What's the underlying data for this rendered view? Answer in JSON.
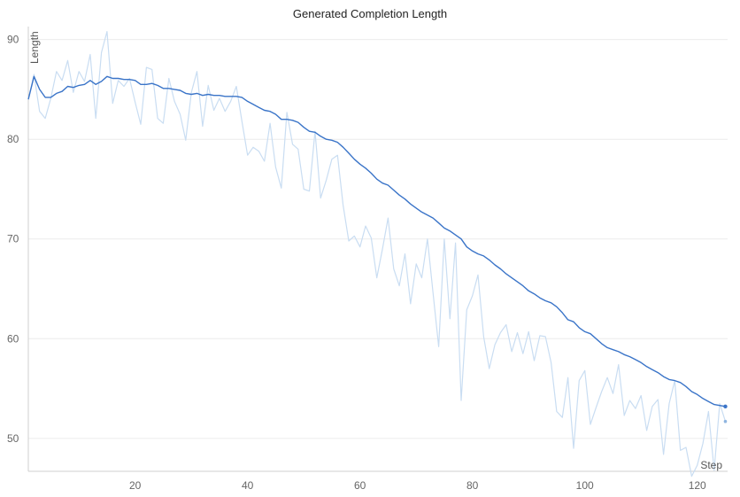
{
  "chart_data": {
    "type": "line",
    "title": "Generated Completion Length",
    "xlabel": "Step",
    "ylabel": "Length",
    "xlim": [
      1,
      125
    ],
    "ylim": [
      46,
      91
    ],
    "x_ticks": [
      20,
      40,
      60,
      80,
      100,
      120
    ],
    "y_ticks": [
      50,
      60,
      70,
      80,
      90
    ],
    "grid": "horizontal",
    "colors": {
      "raw": "#c9ddf2",
      "smoothed": "#3a74c8"
    },
    "series": [
      {
        "role": "raw",
        "values": [
          84.0,
          86.5,
          82.8,
          82.1,
          84.1,
          86.8,
          85.9,
          87.9,
          84.7,
          86.8,
          85.8,
          88.5,
          82.1,
          88.7,
          90.8,
          83.6,
          85.9,
          85.3,
          86.1,
          83.7,
          81.5,
          87.2,
          87.0,
          82.1,
          81.6,
          86.1,
          83.8,
          82.5,
          79.9,
          84.7,
          86.8,
          81.3,
          85.4,
          82.9,
          84.1,
          82.8,
          83.8,
          85.3,
          81.8,
          78.4,
          79.2,
          78.8,
          77.8,
          81.6,
          77.2,
          75.1,
          82.7,
          79.5,
          79.0,
          75.0,
          74.8,
          80.8,
          74.1,
          75.9,
          78.0,
          78.4,
          73.4,
          69.8,
          70.3,
          69.2,
          71.3,
          70.1,
          66.1,
          69.0,
          72.1,
          67.0,
          65.3,
          68.5,
          63.5,
          67.5,
          66.1,
          70.0,
          64.6,
          59.2,
          70.0,
          62.0,
          69.6,
          53.8,
          62.9,
          64.3,
          66.4,
          60.2,
          57.0,
          59.4,
          60.6,
          61.4,
          58.7,
          60.6,
          58.5,
          60.7,
          57.8,
          60.3,
          60.2,
          57.6,
          52.7,
          52.1,
          56.1,
          49.0,
          55.8,
          56.8,
          51.4,
          53.1,
          54.7,
          56.1,
          54.5,
          57.4,
          52.3,
          53.8,
          53.0,
          54.3,
          50.8,
          53.2,
          53.9,
          48.4,
          53.5,
          55.8,
          48.8,
          49.1,
          46.2,
          47.3,
          49.5,
          52.7,
          46.8,
          53.5,
          51.7
        ]
      },
      {
        "role": "smoothed",
        "values": [
          84.0,
          86.3,
          85.0,
          84.2,
          84.2,
          84.6,
          84.8,
          85.3,
          85.2,
          85.4,
          85.5,
          85.9,
          85.5,
          85.8,
          86.3,
          86.1,
          86.1,
          86.0,
          86.0,
          85.9,
          85.5,
          85.5,
          85.6,
          85.4,
          85.1,
          85.1,
          85.0,
          84.9,
          84.6,
          84.5,
          84.6,
          84.4,
          84.5,
          84.4,
          84.4,
          84.3,
          84.3,
          84.3,
          84.2,
          83.8,
          83.5,
          83.2,
          82.9,
          82.8,
          82.5,
          82.0,
          82.0,
          81.9,
          81.7,
          81.2,
          80.8,
          80.7,
          80.3,
          80.0,
          79.9,
          79.7,
          79.2,
          78.6,
          78.0,
          77.5,
          77.1,
          76.6,
          76.0,
          75.6,
          75.4,
          74.9,
          74.4,
          74.0,
          73.5,
          73.1,
          72.7,
          72.4,
          72.1,
          71.6,
          71.1,
          70.8,
          70.4,
          70.0,
          69.2,
          68.8,
          68.5,
          68.3,
          67.9,
          67.4,
          67.0,
          66.5,
          66.1,
          65.7,
          65.3,
          64.8,
          64.5,
          64.1,
          63.8,
          63.6,
          63.2,
          62.6,
          61.9,
          61.7,
          61.1,
          60.7,
          60.5,
          60.0,
          59.5,
          59.1,
          58.9,
          58.7,
          58.4,
          58.2,
          57.9,
          57.6,
          57.2,
          56.9,
          56.6,
          56.2,
          55.9,
          55.8,
          55.6,
          55.2,
          54.7,
          54.4,
          54.0,
          53.7,
          53.4,
          53.3,
          53.2
        ]
      }
    ]
  }
}
